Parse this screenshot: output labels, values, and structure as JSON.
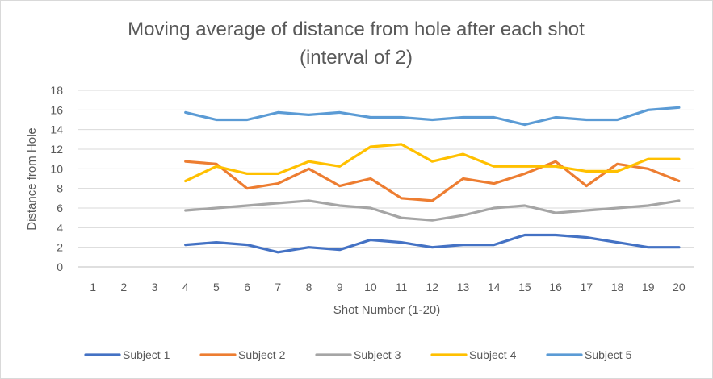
{
  "chart_data": {
    "type": "line",
    "title": "Moving average of distance from hole after each shot",
    "subtitle": "(interval of 2)",
    "xlabel": "Shot Number (1-20)",
    "ylabel": "Distance from Hole",
    "categories": [
      "1",
      "2",
      "3",
      "4",
      "5",
      "6",
      "7",
      "8",
      "9",
      "10",
      "11",
      "12",
      "13",
      "14",
      "15",
      "16",
      "17",
      "18",
      "19",
      "20"
    ],
    "yticks": [
      "0",
      "2",
      "4",
      "6",
      "8",
      "10",
      "12",
      "14",
      "16",
      "18"
    ],
    "ylim": [
      0,
      18
    ],
    "grid": "horizontal",
    "legend": "bottom",
    "series": [
      {
        "name": "Subject 1",
        "color": "#4472C4",
        "values": [
          null,
          null,
          null,
          2.25,
          2.5,
          2.25,
          1.5,
          2.0,
          1.75,
          2.75,
          2.5,
          2.0,
          2.25,
          2.25,
          3.25,
          3.25,
          3.0,
          2.5,
          2.0,
          2.0
        ]
      },
      {
        "name": "Subject 2",
        "color": "#ED7D31",
        "values": [
          null,
          null,
          null,
          10.75,
          10.5,
          8.0,
          8.5,
          10.0,
          8.25,
          9.0,
          7.0,
          6.75,
          9.0,
          8.5,
          9.5,
          10.75,
          8.25,
          10.5,
          10.0,
          8.75
        ]
      },
      {
        "name": "Subject 3",
        "color": "#A5A5A5",
        "values": [
          null,
          null,
          null,
          5.75,
          6.0,
          6.25,
          6.5,
          6.75,
          6.25,
          6.0,
          5.0,
          4.75,
          5.25,
          6.0,
          6.25,
          5.5,
          5.75,
          6.0,
          6.25,
          6.75
        ]
      },
      {
        "name": "Subject 4",
        "color": "#FFC000",
        "values": [
          null,
          null,
          null,
          8.75,
          10.25,
          9.5,
          9.5,
          10.75,
          10.25,
          12.25,
          12.5,
          10.75,
          11.5,
          10.25,
          10.25,
          10.25,
          9.75,
          9.75,
          11.0,
          11.0
        ]
      },
      {
        "name": "Subject 5",
        "color": "#5B9BD5",
        "values": [
          null,
          null,
          null,
          15.75,
          15.0,
          15.0,
          15.75,
          15.5,
          15.75,
          15.25,
          15.25,
          15.0,
          15.25,
          15.25,
          14.5,
          15.25,
          15.0,
          15.0,
          16.0,
          16.25
        ]
      }
    ]
  }
}
